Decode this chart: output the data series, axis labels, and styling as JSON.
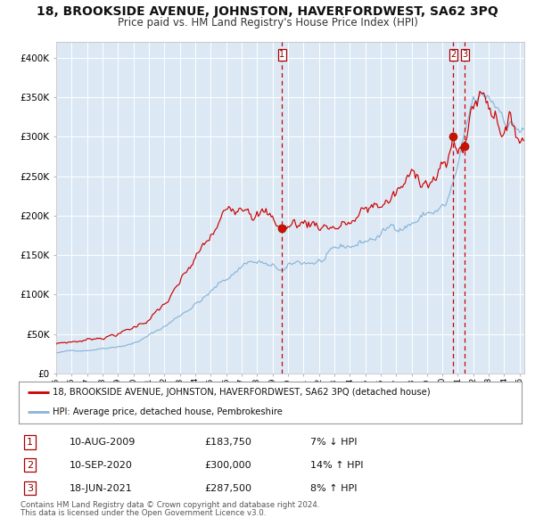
{
  "title": "18, BROOKSIDE AVENUE, JOHNSTON, HAVERFORDWEST, SA62 3PQ",
  "subtitle": "Price paid vs. HM Land Registry's House Price Index (HPI)",
  "red_label": "18, BROOKSIDE AVENUE, JOHNSTON, HAVERFORDWEST, SA62 3PQ (detached house)",
  "blue_label": "HPI: Average price, detached house, Pembrokeshire",
  "transactions": [
    {
      "num": 1,
      "date": "10-AUG-2009",
      "price": 183750,
      "pct": "7%",
      "dir": "↓",
      "year": 2009.617
    },
    {
      "num": 2,
      "date": "10-SEP-2020",
      "price": 300000,
      "pct": "14%",
      "dir": "↑",
      "year": 2020.7
    },
    {
      "num": 3,
      "date": "18-JUN-2021",
      "price": 287500,
      "pct": "8%",
      "dir": "↑",
      "year": 2021.458
    }
  ],
  "footnote1": "Contains HM Land Registry data © Crown copyright and database right 2024.",
  "footnote2": "This data is licensed under the Open Government Licence v3.0.",
  "background_color": "#ffffff",
  "plot_bg_color": "#dce9f5",
  "grid_color": "#ffffff",
  "red_line_color": "#cc0000",
  "blue_line_color": "#8ab4d8",
  "dashed_line_color": "#cc0000",
  "title_fontsize": 10,
  "subtitle_fontsize": 8.5,
  "ylim": [
    0,
    420000
  ],
  "xlim_start": 1995.25,
  "xlim_end": 2025.3
}
